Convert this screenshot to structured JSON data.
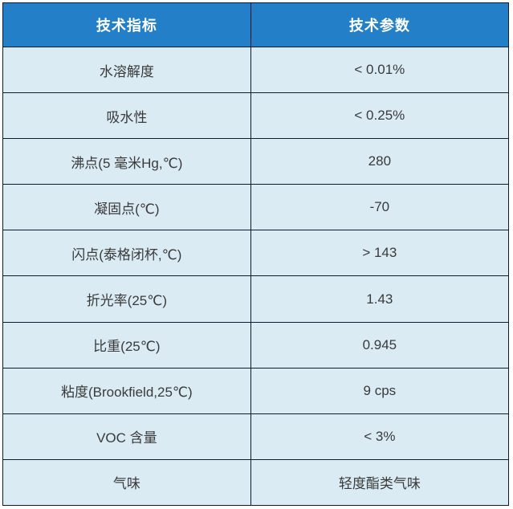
{
  "table": {
    "header": {
      "indicator": "技术指标",
      "parameter": "技术参数"
    },
    "rows": [
      {
        "indicator": "水溶解度",
        "parameter": "< 0.01%"
      },
      {
        "indicator": "吸水性",
        "parameter": "< 0.25%"
      },
      {
        "indicator": "沸点(5 毫米Hg,℃)",
        "parameter": "280"
      },
      {
        "indicator": "凝固点(℃)",
        "parameter": "-70"
      },
      {
        "indicator": "闪点(泰格闭杯,℃)",
        "parameter": "> 143"
      },
      {
        "indicator": "折光率(25℃)",
        "parameter": "1.43"
      },
      {
        "indicator": "比重(25℃)",
        "parameter": "0.945"
      },
      {
        "indicator": "粘度(Brookfield,25℃)",
        "parameter": "9 cps"
      },
      {
        "indicator": "VOC 含量",
        "parameter": "< 3%"
      },
      {
        "indicator": "气味",
        "parameter": "轻度酯类气味"
      }
    ]
  },
  "colors": {
    "header_bg": "#2380c8",
    "header_text": "#ffffff",
    "row_bg": "#daebf3",
    "row_text": "#3a3a3a",
    "border": "#0d1b2e",
    "page_bg": "#ffffff"
  }
}
